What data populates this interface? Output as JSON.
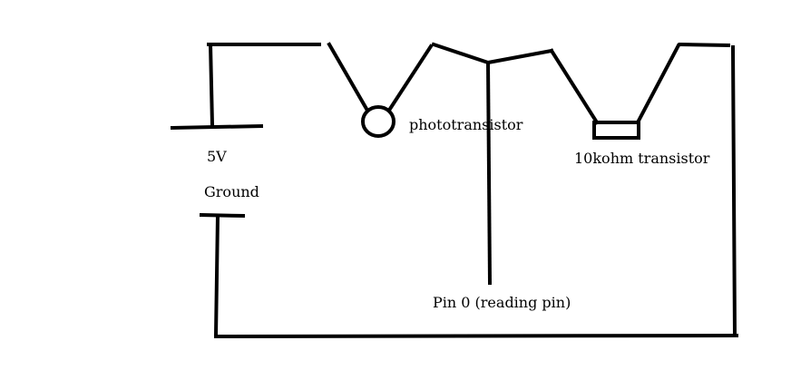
{
  "labels": {
    "supply": "5V",
    "ground": "Ground",
    "phototransistor": "phototransistor",
    "resistor": "10kohm transistor",
    "reading_pin": "Pin 0 (reading pin)"
  },
  "colors": {
    "background": "#ffffff",
    "ink": "#000000"
  }
}
